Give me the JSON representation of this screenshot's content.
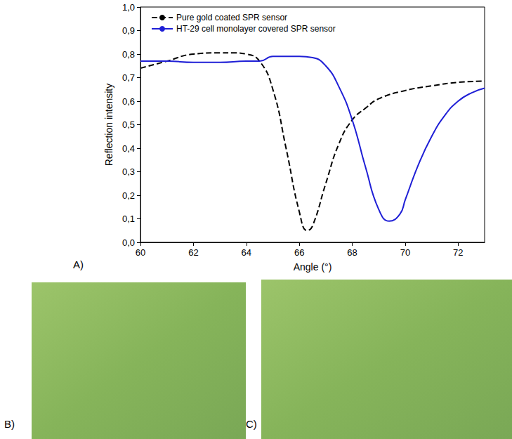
{
  "chart_data": {
    "type": "line",
    "xlabel": "Angle (°)",
    "ylabel": "Reflection intensity",
    "xlim": [
      60,
      73
    ],
    "xticks": [
      60,
      62,
      64,
      66,
      68,
      70,
      72
    ],
    "ylim": [
      0,
      1
    ],
    "yticks": [
      {
        "value": 0,
        "label": "0,0"
      },
      {
        "value": 0.1,
        "label": "0,1"
      },
      {
        "value": 0.2,
        "label": "0,2"
      },
      {
        "value": 0.3,
        "label": "0,3"
      },
      {
        "value": 0.4,
        "label": "0,4"
      },
      {
        "value": 0.5,
        "label": "0,5"
      },
      {
        "value": 0.6,
        "label": "0,6"
      },
      {
        "value": 0.7,
        "label": "0,7"
      },
      {
        "value": 0.8,
        "label": "0,8"
      },
      {
        "value": 0.9,
        "label": "0,9"
      },
      {
        "value": 1,
        "label": "1,0"
      }
    ],
    "grid": false,
    "legend": "upper left",
    "marker": "none",
    "annotations": [
      "A)",
      "B)",
      "C)"
    ],
    "series": [
      {
        "name": "Pure gold coated SPR sensor",
        "color": "#000000",
        "line_style": "dashed",
        "x": [
          60,
          61,
          62,
          63,
          63.5,
          64,
          64.5,
          65,
          65.5,
          66,
          66.3,
          66.5,
          67,
          67.5,
          68,
          68.5,
          69,
          70,
          71,
          72,
          73
        ],
        "values": [
          0.74,
          0.77,
          0.8,
          0.805,
          0.805,
          0.8,
          0.77,
          0.65,
          0.4,
          0.13,
          0.05,
          0.07,
          0.25,
          0.42,
          0.52,
          0.57,
          0.61,
          0.645,
          0.665,
          0.68,
          0.685
        ]
      },
      {
        "name": "HT-29 cell monolayer covered SPR sensor",
        "color": "#1f1fd6",
        "line_style": "solid",
        "x": [
          60,
          61,
          62,
          63,
          64,
          64.5,
          65,
          66,
          66.5,
          67,
          67.5,
          68,
          68.5,
          69,
          69.4,
          69.8,
          70,
          70.5,
          71,
          71.5,
          72,
          72.5,
          73
        ],
        "values": [
          0.77,
          0.77,
          0.765,
          0.765,
          0.77,
          0.77,
          0.79,
          0.79,
          0.785,
          0.75,
          0.66,
          0.52,
          0.32,
          0.14,
          0.09,
          0.12,
          0.18,
          0.33,
          0.45,
          0.54,
          0.6,
          0.635,
          0.655
        ]
      }
    ]
  }
}
